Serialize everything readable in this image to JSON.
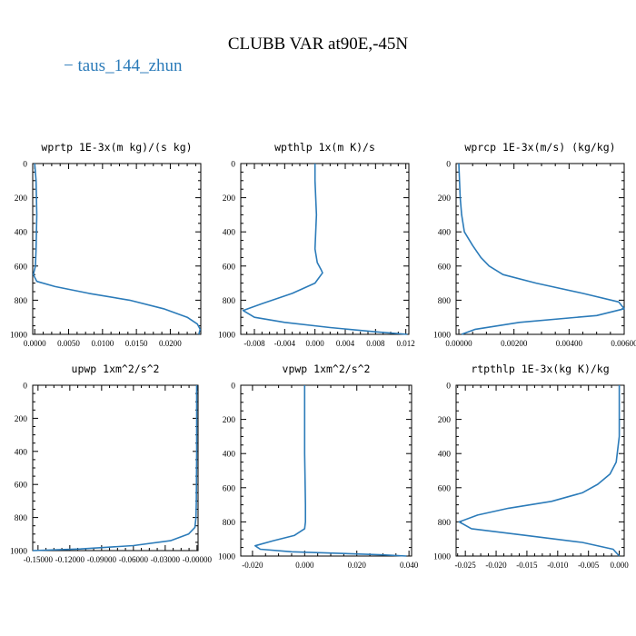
{
  "figure_title": "CLUBB VAR at90E,-45N",
  "legend": {
    "label": "taus_144_zhun",
    "color": "#2b7bb9"
  },
  "line_color": "#2b7bb9",
  "chart_data": [
    {
      "type": "line",
      "title": "wprtp  1E-3x(m kg)/(s kg)",
      "xlim": [
        -0.0003,
        0.0245
      ],
      "ylim": [
        0,
        1000
      ],
      "y_inverted": true,
      "xticks": [
        0.0,
        0.005,
        0.01,
        0.015,
        0.02
      ],
      "xtick_labels": [
        "0.0000",
        "0.0050",
        "0.0100",
        "0.0150",
        "0.0200"
      ],
      "yticks": [
        0,
        200,
        400,
        600,
        800,
        1000
      ],
      "ytick_labels": [
        "0",
        "200",
        "400",
        "600",
        "800",
        "1000"
      ],
      "series": [
        {
          "x": [
            0.0,
            0.0002,
            0.0003,
            0.0002,
            0.0001,
            -0.0002,
            0.0003,
            0.003,
            0.008,
            0.014,
            0.019,
            0.0225,
            0.024,
            0.0244,
            0.0242
          ],
          "y": [
            0,
            100,
            300,
            500,
            600,
            650,
            690,
            720,
            760,
            800,
            850,
            900,
            940,
            970,
            1000
          ]
        }
      ]
    },
    {
      "type": "line",
      "title": "wpthlp  1x(m K)/s",
      "xlim": [
        -0.0098,
        0.0124
      ],
      "ylim": [
        0,
        1000
      ],
      "y_inverted": true,
      "xticks": [
        -0.008,
        -0.004,
        0.0,
        0.004,
        0.008,
        0.012
      ],
      "xtick_labels": [
        "-0.008",
        "-0.004",
        "0.000",
        "0.004",
        "0.008",
        "0.012"
      ],
      "yticks": [
        0,
        200,
        400,
        600,
        800,
        1000
      ],
      "ytick_labels": [
        "0",
        "200",
        "400",
        "600",
        "800",
        "1000"
      ],
      "series": [
        {
          "x": [
            0.0,
            0.0,
            0.0002,
            0.0001,
            0.0,
            0.0003,
            0.0008,
            0.001,
            0.0,
            -0.003,
            -0.007,
            -0.0095,
            -0.008,
            -0.004,
            0.002,
            0.008,
            0.0122
          ],
          "y": [
            0,
            100,
            300,
            400,
            500,
            580,
            620,
            640,
            700,
            760,
            820,
            860,
            900,
            930,
            960,
            985,
            1000
          ]
        }
      ]
    },
    {
      "type": "line",
      "title": "wprcp  1E-3x(m/s) (kg/kg)",
      "xlim": [
        -0.0001,
        0.006
      ],
      "ylim": [
        0,
        1000
      ],
      "y_inverted": true,
      "xticks": [
        0.0,
        0.002,
        0.004,
        0.006
      ],
      "xtick_labels": [
        "0.00000",
        "0.00200",
        "0.00400",
        "0.00600"
      ],
      "yticks": [
        0,
        200,
        400,
        600,
        800,
        1000
      ],
      "ytick_labels": [
        "0",
        "200",
        "400",
        "600",
        "800",
        "1000"
      ],
      "series": [
        {
          "x": [
            0.0,
            5e-05,
            0.0001,
            0.0002,
            0.0005,
            0.0008,
            0.0011,
            0.0016,
            0.0028,
            0.0045,
            0.0058,
            0.006,
            0.005,
            0.0022,
            0.0006,
            0.0001
          ],
          "y": [
            0,
            200,
            300,
            400,
            480,
            550,
            600,
            650,
            700,
            760,
            810,
            850,
            890,
            930,
            970,
            1000
          ]
        }
      ]
    },
    {
      "type": "line",
      "title": "upwp  1xm^2/s^2",
      "xlim": [
        -0.155,
        0.001
      ],
      "ylim": [
        0,
        1000
      ],
      "y_inverted": true,
      "xticks": [
        -0.15,
        -0.12,
        -0.09,
        -0.06,
        -0.03,
        0.0
      ],
      "xtick_labels": [
        "-0.15000",
        "-0.12000",
        "-0.09000",
        "-0.06000",
        "-0.03000",
        "-0.00000"
      ],
      "yticks": [
        0,
        200,
        400,
        600,
        800,
        1000
      ],
      "ytick_labels": [
        "0",
        "200",
        "400",
        "600",
        "800",
        "1000"
      ],
      "series": [
        {
          "x": [
            -0.0003,
            -0.0003,
            -0.0006,
            -0.001,
            -0.002,
            -0.008,
            -0.025,
            -0.06,
            -0.11,
            -0.155
          ],
          "y": [
            0,
            400,
            700,
            800,
            860,
            900,
            940,
            970,
            990,
            1000
          ]
        }
      ]
    },
    {
      "type": "line",
      "title": "vpwp  1xm^2/s^2",
      "xlim": [
        -0.0245,
        0.041
      ],
      "ylim": [
        0,
        1000
      ],
      "y_inverted": true,
      "xticks": [
        -0.02,
        0.0,
        0.02,
        0.04
      ],
      "xtick_labels": [
        "-0.020",
        "0.000",
        "0.020",
        "0.040"
      ],
      "yticks": [
        0,
        200,
        400,
        600,
        800,
        1000
      ],
      "ytick_labels": [
        "0",
        "200",
        "400",
        "600",
        "800",
        "1000"
      ],
      "series": [
        {
          "x": [
            0.0,
            0.0,
            0.0003,
            0.0003,
            0.0,
            -0.004,
            -0.012,
            -0.019,
            -0.017,
            -0.005,
            0.015,
            0.03,
            0.039
          ],
          "y": [
            0,
            400,
            700,
            800,
            840,
            880,
            910,
            940,
            960,
            975,
            985,
            993,
            1000
          ]
        }
      ]
    },
    {
      "type": "line",
      "title": "rtpthlp  1E-3x(kg K)/kg",
      "xlim": [
        -0.0265,
        0.0008
      ],
      "ylim": [
        0,
        1000
      ],
      "y_inverted": true,
      "xticks": [
        -0.025,
        -0.02,
        -0.015,
        -0.01,
        -0.005,
        0.0
      ],
      "xtick_labels": [
        "-0.025",
        "-0.020",
        "-0.015",
        "-0.010",
        "-0.005",
        "0.000"
      ],
      "yticks": [
        0,
        200,
        400,
        600,
        800,
        1000
      ],
      "ytick_labels": [
        "0",
        "200",
        "400",
        "600",
        "800",
        "1000"
      ],
      "series": [
        {
          "x": [
            0.0,
            0.0,
            -0.0005,
            -0.0015,
            -0.0035,
            -0.006,
            -0.011,
            -0.018,
            -0.023,
            -0.026,
            -0.024,
            -0.015,
            -0.006,
            -0.001,
            0.0
          ],
          "y": [
            0,
            300,
            450,
            520,
            580,
            630,
            680,
            720,
            760,
            800,
            840,
            880,
            920,
            960,
            1000
          ]
        }
      ]
    }
  ]
}
